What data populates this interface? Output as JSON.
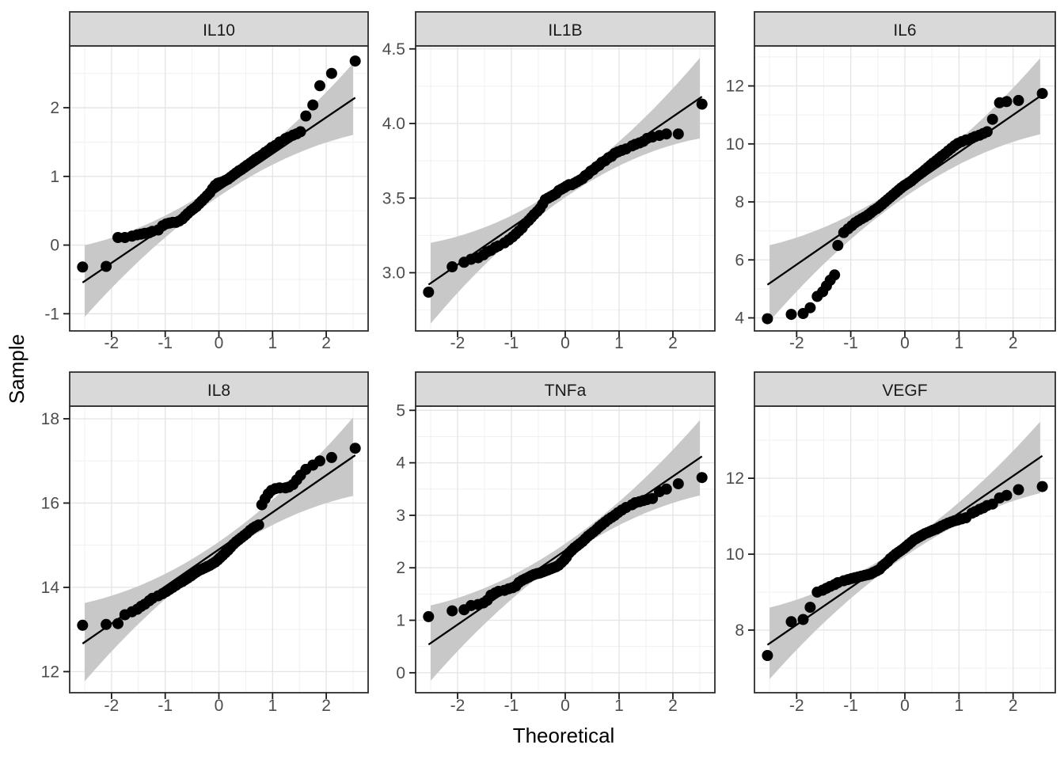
{
  "chart_data": {
    "type": "scatter",
    "subtype": "faceted-qq-plot",
    "title": "",
    "xlabel": "Theoretical",
    "ylabel": "Sample",
    "x_range": [
      -2.78,
      2.78
    ],
    "x_ticks": [
      -2,
      -1,
      0,
      1,
      2
    ],
    "x_tick_labels": [
      "-2",
      "-1",
      "0",
      "1",
      "2"
    ],
    "grid": true,
    "legend": "none",
    "theoretical_quantiles": [
      -2.54,
      -2.1,
      -1.88,
      -1.75,
      -1.62,
      -1.52,
      -1.45,
      -1.38,
      -1.3,
      -1.24,
      -1.13,
      -1.05,
      -0.98,
      -0.92,
      -0.86,
      -0.8,
      -0.74,
      -0.68,
      -0.63,
      -0.58,
      -0.52,
      -0.47,
      -0.42,
      -0.37,
      -0.32,
      -0.27,
      -0.22,
      -0.17,
      -0.12,
      -0.07,
      -0.02,
      0.02,
      0.07,
      0.12,
      0.17,
      0.22,
      0.27,
      0.32,
      0.37,
      0.42,
      0.47,
      0.52,
      0.58,
      0.63,
      0.68,
      0.74,
      0.8,
      0.86,
      0.92,
      0.98,
      1.05,
      1.13,
      1.24,
      1.3,
      1.38,
      1.45,
      1.52,
      1.62,
      1.75,
      1.88,
      2.1,
      2.54
    ],
    "panels": [
      {
        "label": "IL10",
        "y_range": [
          -1.25,
          2.9
        ],
        "y_ticks": [
          -1,
          0,
          1,
          2
        ],
        "y_tick_labels": [
          "-1",
          "0",
          "1",
          "2"
        ],
        "line": {
          "slope": 0.53,
          "intercept": 0.8
        },
        "band": {
          "w0": 0.09,
          "w2": 0.069
        },
        "sample": [
          -0.32,
          -0.31,
          0.11,
          0.11,
          0.13,
          0.15,
          0.16,
          0.17,
          0.18,
          0.2,
          0.22,
          0.28,
          0.31,
          0.32,
          0.33,
          0.33,
          0.35,
          0.38,
          0.42,
          0.46,
          0.5,
          0.53,
          0.56,
          0.6,
          0.64,
          0.68,
          0.72,
          0.76,
          0.82,
          0.87,
          0.9,
          0.91,
          0.92,
          0.94,
          0.96,
          0.99,
          1.02,
          1.05,
          1.08,
          1.1,
          1.13,
          1.16,
          1.19,
          1.22,
          1.25,
          1.28,
          1.31,
          1.35,
          1.38,
          1.42,
          1.45,
          1.5,
          1.55,
          1.57,
          1.6,
          1.62,
          1.65,
          1.88,
          2.04,
          2.32,
          2.5,
          2.68
        ]
      },
      {
        "label": "IL1B",
        "y_range": [
          2.61,
          4.52
        ],
        "y_ticks": [
          3.0,
          3.5,
          4.0,
          4.5
        ],
        "y_tick_labels": [
          "3.0",
          "3.5",
          "4.0",
          "4.5"
        ],
        "line": {
          "slope": 0.248,
          "intercept": 3.55
        },
        "band": {
          "w0": 0.045,
          "w2": 0.036
        },
        "sample": [
          2.87,
          3.04,
          3.07,
          3.09,
          3.1,
          3.12,
          3.14,
          3.15,
          3.17,
          3.18,
          3.2,
          3.22,
          3.24,
          3.26,
          3.28,
          3.3,
          3.33,
          3.35,
          3.37,
          3.39,
          3.41,
          3.43,
          3.46,
          3.49,
          3.5,
          3.51,
          3.52,
          3.53,
          3.55,
          3.56,
          3.57,
          3.58,
          3.59,
          3.59,
          3.6,
          3.61,
          3.62,
          3.63,
          3.65,
          3.66,
          3.68,
          3.69,
          3.71,
          3.72,
          3.74,
          3.75,
          3.77,
          3.78,
          3.8,
          3.81,
          3.82,
          3.83,
          3.85,
          3.86,
          3.87,
          3.88,
          3.9,
          3.91,
          3.92,
          3.93,
          3.93,
          4.13
        ]
      },
      {
        "label": "IL6",
        "y_range": [
          3.55,
          13.38
        ],
        "y_ticks": [
          4,
          6,
          8,
          10,
          12
        ],
        "y_tick_labels": [
          "4",
          "6",
          "8",
          "10",
          "12"
        ],
        "line": {
          "slope": 1.29,
          "intercept": 8.42
        },
        "band": {
          "w0": 0.25,
          "w2": 0.17
        },
        "sample": [
          3.97,
          4.12,
          4.15,
          4.35,
          4.74,
          4.9,
          5.1,
          5.3,
          5.48,
          6.5,
          6.94,
          7.07,
          7.18,
          7.28,
          7.35,
          7.42,
          7.48,
          7.55,
          7.62,
          7.7,
          7.77,
          7.84,
          7.92,
          8.0,
          8.08,
          8.16,
          8.24,
          8.32,
          8.4,
          8.48,
          8.55,
          8.6,
          8.66,
          8.72,
          8.8,
          8.88,
          8.95,
          9.02,
          9.1,
          9.18,
          9.26,
          9.34,
          9.42,
          9.5,
          9.58,
          9.66,
          9.76,
          9.85,
          9.94,
          10.02,
          10.08,
          10.14,
          10.2,
          10.25,
          10.3,
          10.36,
          10.42,
          10.85,
          11.42,
          11.46,
          11.5,
          11.74
        ]
      },
      {
        "label": "IL8",
        "y_range": [
          11.5,
          18.3
        ],
        "y_ticks": [
          12,
          14,
          16,
          18
        ],
        "y_tick_labels": [
          "12",
          "14",
          "16",
          "18"
        ],
        "line": {
          "slope": 0.88,
          "intercept": 14.9
        },
        "band": {
          "w0": 0.18,
          "w2": 0.12
        },
        "sample": [
          13.1,
          13.12,
          13.14,
          13.35,
          13.42,
          13.48,
          13.55,
          13.6,
          13.68,
          13.74,
          13.8,
          13.85,
          13.9,
          13.95,
          14.0,
          14.05,
          14.1,
          14.14,
          14.18,
          14.22,
          14.27,
          14.32,
          14.36,
          14.4,
          14.43,
          14.46,
          14.49,
          14.52,
          14.56,
          14.6,
          14.65,
          14.7,
          14.76,
          14.82,
          14.88,
          14.95,
          15.02,
          15.08,
          15.13,
          15.18,
          15.23,
          15.28,
          15.35,
          15.4,
          15.44,
          15.48,
          15.96,
          16.1,
          16.22,
          16.3,
          16.34,
          16.36,
          16.36,
          16.38,
          16.44,
          16.55,
          16.66,
          16.8,
          16.9,
          17.0,
          17.08,
          17.3
        ]
      },
      {
        "label": "TNFa",
        "y_range": [
          -0.38,
          5.08
        ],
        "y_ticks": [
          0,
          1,
          2,
          3,
          4,
          5
        ],
        "y_tick_labels": [
          "0",
          "1",
          "2",
          "3",
          "4",
          "5"
        ],
        "line": {
          "slope": 0.706,
          "intercept": 2.33
        },
        "band": {
          "w0": 0.13,
          "w2": 0.094
        },
        "sample": [
          1.07,
          1.18,
          1.2,
          1.28,
          1.3,
          1.33,
          1.38,
          1.48,
          1.52,
          1.55,
          1.57,
          1.6,
          1.62,
          1.65,
          1.72,
          1.76,
          1.79,
          1.82,
          1.85,
          1.87,
          1.89,
          1.9,
          1.92,
          1.94,
          1.96,
          1.98,
          2.0,
          2.02,
          2.05,
          2.1,
          2.15,
          2.2,
          2.28,
          2.33,
          2.38,
          2.42,
          2.46,
          2.5,
          2.55,
          2.6,
          2.64,
          2.68,
          2.73,
          2.78,
          2.82,
          2.87,
          2.92,
          2.96,
          3.0,
          3.05,
          3.1,
          3.15,
          3.2,
          3.24,
          3.26,
          3.28,
          3.3,
          3.32,
          3.45,
          3.5,
          3.6,
          3.72
        ]
      },
      {
        "label": "VEGF",
        "y_range": [
          6.35,
          13.9
        ],
        "y_ticks": [
          8,
          10,
          12
        ],
        "y_tick_labels": [
          "8",
          "10",
          "12"
        ],
        "line": {
          "slope": 0.98,
          "intercept": 10.1
        },
        "band": {
          "w0": 0.16,
          "w2": 0.125
        },
        "sample": [
          7.33,
          8.22,
          8.28,
          8.6,
          9.0,
          9.05,
          9.1,
          9.15,
          9.2,
          9.25,
          9.3,
          9.33,
          9.36,
          9.38,
          9.4,
          9.42,
          9.44,
          9.46,
          9.48,
          9.52,
          9.56,
          9.6,
          9.68,
          9.74,
          9.8,
          9.88,
          9.94,
          10.0,
          10.05,
          10.1,
          10.15,
          10.2,
          10.26,
          10.32,
          10.38,
          10.42,
          10.46,
          10.5,
          10.54,
          10.57,
          10.6,
          10.63,
          10.66,
          10.7,
          10.74,
          10.78,
          10.82,
          10.85,
          10.88,
          10.9,
          10.93,
          10.96,
          11.08,
          11.12,
          11.18,
          11.22,
          11.28,
          11.32,
          11.48,
          11.55,
          11.7,
          11.78
        ]
      }
    ]
  },
  "style": {
    "strip_fill": "#d9d9d9",
    "panel_border": "#2e2e2e",
    "grid_major": "#e4e4e4",
    "grid_minor": "#f0f0f0",
    "band_fill": "#c8c8c8",
    "point_color": "#000000",
    "line_color": "#000000",
    "tick_color": "#1a1a1a",
    "tick_label_color": "#4d4d4d",
    "strip_text_color": "#1a1a1a",
    "axis_title_color": "#000000",
    "panel_background": "#ffffff"
  }
}
